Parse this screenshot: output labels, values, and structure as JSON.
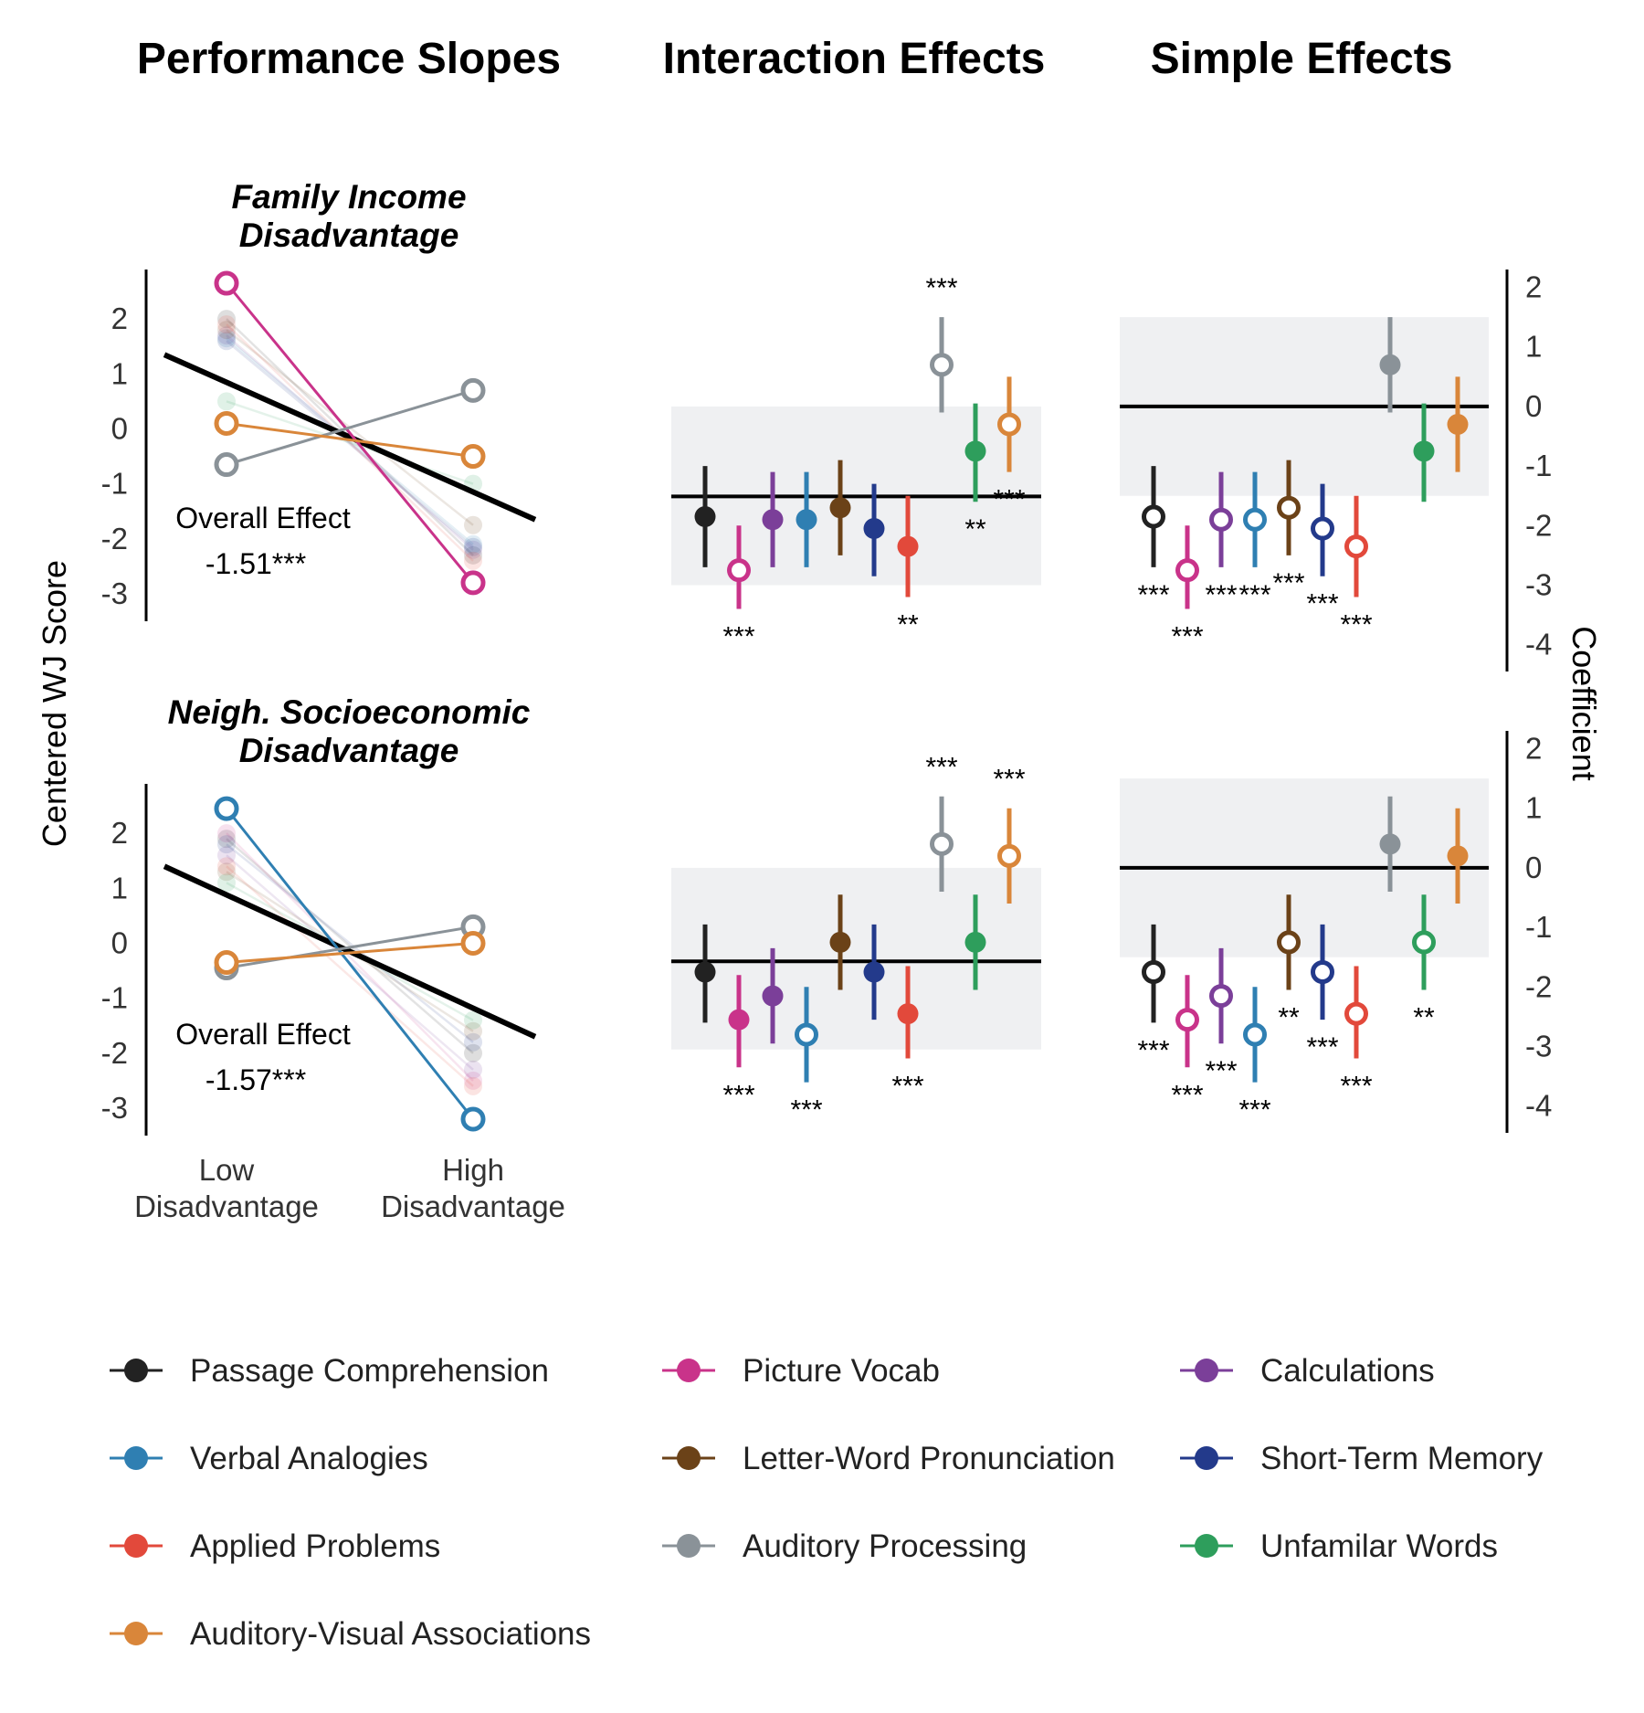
{
  "titles": {
    "performance": "Performance Slopes",
    "interaction": "Interaction Effects",
    "simple": "Simple Effects"
  },
  "colors": {
    "Passage Comprehension": "#222222",
    "Picture Vocab": "#c9338a",
    "Calculations": "#7b3f99",
    "Verbal Analogies": "#2f7fb2",
    "Letter-Word Pronunciation": "#6b4218",
    "Short-Term Memory": "#233a8b",
    "Applied Problems": "#e2493b",
    "Auditory Processing": "#8a9298",
    "Unfamilar Words": "#2e9e5c",
    "Auditory-Visual Associations": "#d9863a"
  },
  "legend": [
    "Passage Comprehension",
    "Picture Vocab",
    "Calculations",
    "Verbal Analogies",
    "Letter-Word Pronunciation",
    "Short-Term Memory",
    "Applied Problems",
    "Auditory Processing",
    "Unfamilar Words",
    "Auditory-Visual Associations"
  ],
  "chart_data": [
    {
      "id": "slopes-income",
      "type": "line",
      "title": "Family Income\nDisadvantage",
      "ylabel": "Centered WJ Score",
      "categories": [
        "Low\nDisadvantage",
        "High\nDisadvantage"
      ],
      "yticks": [
        2,
        1,
        0,
        -1,
        -2,
        -3
      ],
      "ylim": [
        -3.5,
        2.9
      ],
      "overall_effect": {
        "label": "Overall Effect",
        "value": "-1.51***",
        "line": [
          1.35,
          -1.65
        ]
      },
      "series": [
        {
          "name": "Picture Vocab",
          "values": [
            2.65,
            -2.8
          ],
          "highlight": true
        },
        {
          "name": "Auditory Processing",
          "values": [
            -0.65,
            0.7
          ],
          "highlight": true
        },
        {
          "name": "Auditory-Visual Associations",
          "values": [
            0.1,
            -0.5
          ],
          "highlight": true
        },
        {
          "name": "Passage Comprehension",
          "values": [
            2.0,
            -2.3
          ],
          "highlight": false
        },
        {
          "name": "Calculations",
          "values": [
            1.7,
            -2.2
          ],
          "highlight": false
        },
        {
          "name": "Verbal Analogies",
          "values": [
            1.65,
            -2.1
          ],
          "highlight": false
        },
        {
          "name": "Short-Term Memory",
          "values": [
            1.6,
            -2.15
          ],
          "highlight": false
        },
        {
          "name": "Letter-Word Pronunciation",
          "values": [
            1.8,
            -1.75
          ],
          "highlight": false
        },
        {
          "name": "Applied Problems",
          "values": [
            1.9,
            -2.4
          ],
          "highlight": false
        },
        {
          "name": "Unfamilar Words",
          "values": [
            0.5,
            -1.0
          ],
          "highlight": false
        }
      ]
    },
    {
      "id": "slopes-neigh",
      "type": "line",
      "title": "Neigh. Socioeconomic\nDisadvantage",
      "ylabel": "Centered WJ Score",
      "categories": [
        "Low\nDisadvantage",
        "High\nDisadvantage"
      ],
      "yticks": [
        2,
        1,
        0,
        -1,
        -2,
        -3
      ],
      "ylim": [
        -3.5,
        2.9
      ],
      "overall_effect": {
        "label": "Overall Effect",
        "value": "-1.57***",
        "line": [
          1.4,
          -1.7
        ]
      },
      "series": [
        {
          "name": "Verbal Analogies",
          "values": [
            2.45,
            -3.2
          ],
          "highlight": true
        },
        {
          "name": "Auditory Processing",
          "values": [
            -0.45,
            0.3
          ],
          "highlight": true
        },
        {
          "name": "Auditory-Visual Associations",
          "values": [
            -0.35,
            0.0
          ],
          "highlight": true
        },
        {
          "name": "Passage Comprehension",
          "values": [
            1.9,
            -2.0
          ],
          "highlight": false
        },
        {
          "name": "Picture Vocab",
          "values": [
            2.0,
            -2.5
          ],
          "highlight": false
        },
        {
          "name": "Calculations",
          "values": [
            1.6,
            -2.3
          ],
          "highlight": false
        },
        {
          "name": "Short-Term Memory",
          "values": [
            1.8,
            -1.8
          ],
          "highlight": false
        },
        {
          "name": "Letter-Word Pronunciation",
          "values": [
            1.3,
            -1.6
          ],
          "highlight": false
        },
        {
          "name": "Applied Problems",
          "values": [
            1.4,
            -2.6
          ],
          "highlight": false
        },
        {
          "name": "Unfamilar Words",
          "values": [
            1.1,
            -1.4
          ],
          "highlight": false
        }
      ]
    },
    {
      "id": "interaction-income",
      "type": "scatter",
      "ylim": [
        -4.45,
        2.3
      ],
      "refline": -1.51,
      "band": [
        -3.0,
        0.0
      ],
      "points": [
        {
          "name": "Passage Comprehension",
          "value": -1.85,
          "lo": -2.7,
          "hi": -1.0,
          "open": false,
          "stars": ""
        },
        {
          "name": "Picture Vocab",
          "value": -2.75,
          "lo": -3.4,
          "hi": -2.0,
          "open": true,
          "stars": "***"
        },
        {
          "name": "Calculations",
          "value": -1.9,
          "lo": -2.7,
          "hi": -1.1,
          "open": false,
          "stars": ""
        },
        {
          "name": "Verbal Analogies",
          "value": -1.9,
          "lo": -2.7,
          "hi": -1.1,
          "open": false,
          "stars": ""
        },
        {
          "name": "Letter-Word Pronunciation",
          "value": -1.7,
          "lo": -2.5,
          "hi": -0.9,
          "open": false,
          "stars": ""
        },
        {
          "name": "Short-Term Memory",
          "value": -2.05,
          "lo": -2.85,
          "hi": -1.3,
          "open": false,
          "stars": ""
        },
        {
          "name": "Applied Problems",
          "value": -2.35,
          "lo": -3.2,
          "hi": -1.5,
          "open": false,
          "stars": "**"
        },
        {
          "name": "Auditory Processing",
          "value": 0.7,
          "lo": -0.1,
          "hi": 1.5,
          "open": true,
          "stars": "***"
        },
        {
          "name": "Unfamilar Words",
          "value": -0.75,
          "lo": -1.6,
          "hi": 0.05,
          "open": false,
          "stars": "**"
        },
        {
          "name": "Auditory-Visual Associations",
          "value": -0.3,
          "lo": -1.1,
          "hi": 0.5,
          "open": true,
          "stars": "***"
        }
      ]
    },
    {
      "id": "simple-income",
      "type": "scatter",
      "ylim": [
        -4.45,
        2.3
      ],
      "yticks": [
        2,
        1,
        0,
        -1,
        -2,
        -3,
        -4
      ],
      "ylabel": "Coefficient",
      "refline": 0,
      "band": [
        -1.5,
        1.5
      ],
      "points": [
        {
          "name": "Passage Comprehension",
          "value": -1.85,
          "lo": -2.7,
          "hi": -1.0,
          "open": true,
          "stars": "***"
        },
        {
          "name": "Picture Vocab",
          "value": -2.75,
          "lo": -3.4,
          "hi": -2.0,
          "open": true,
          "stars": "***"
        },
        {
          "name": "Calculations",
          "value": -1.9,
          "lo": -2.7,
          "hi": -1.1,
          "open": true,
          "stars": "***"
        },
        {
          "name": "Verbal Analogies",
          "value": -1.9,
          "lo": -2.7,
          "hi": -1.1,
          "open": true,
          "stars": "***"
        },
        {
          "name": "Letter-Word Pronunciation",
          "value": -1.7,
          "lo": -2.5,
          "hi": -0.9,
          "open": true,
          "stars": "***"
        },
        {
          "name": "Short-Term Memory",
          "value": -2.05,
          "lo": -2.85,
          "hi": -1.3,
          "open": true,
          "stars": "***"
        },
        {
          "name": "Applied Problems",
          "value": -2.35,
          "lo": -3.2,
          "hi": -1.5,
          "open": true,
          "stars": "***"
        },
        {
          "name": "Auditory Processing",
          "value": 0.7,
          "lo": -0.1,
          "hi": 1.5,
          "open": false,
          "stars": ""
        },
        {
          "name": "Unfamilar Words",
          "value": -0.75,
          "lo": -1.6,
          "hi": 0.05,
          "open": false,
          "stars": ""
        },
        {
          "name": "Auditory-Visual Associations",
          "value": -0.3,
          "lo": -1.1,
          "hi": 0.5,
          "open": false,
          "stars": ""
        }
      ]
    },
    {
      "id": "interaction-neigh",
      "type": "scatter",
      "ylim": [
        -4.45,
        2.3
      ],
      "refline": -1.57,
      "band": [
        -3.05,
        0.0
      ],
      "points": [
        {
          "name": "Passage Comprehension",
          "value": -1.75,
          "lo": -2.6,
          "hi": -0.95,
          "open": false,
          "stars": ""
        },
        {
          "name": "Picture Vocab",
          "value": -2.55,
          "lo": -3.35,
          "hi": -1.8,
          "open": false,
          "stars": "***"
        },
        {
          "name": "Calculations",
          "value": -2.15,
          "lo": -2.95,
          "hi": -1.35,
          "open": false,
          "stars": ""
        },
        {
          "name": "Verbal Analogies",
          "value": -2.8,
          "lo": -3.6,
          "hi": -2.0,
          "open": true,
          "stars": "***"
        },
        {
          "name": "Letter-Word Pronunciation",
          "value": -1.25,
          "lo": -2.05,
          "hi": -0.45,
          "open": false,
          "stars": ""
        },
        {
          "name": "Short-Term Memory",
          "value": -1.75,
          "lo": -2.55,
          "hi": -0.95,
          "open": false,
          "stars": ""
        },
        {
          "name": "Applied Problems",
          "value": -2.45,
          "lo": -3.2,
          "hi": -1.65,
          "open": false,
          "stars": "***"
        },
        {
          "name": "Auditory Processing",
          "value": 0.4,
          "lo": -0.4,
          "hi": 1.2,
          "open": true,
          "stars": "***"
        },
        {
          "name": "Unfamilar Words",
          "value": -1.25,
          "lo": -2.05,
          "hi": -0.45,
          "open": false,
          "stars": ""
        },
        {
          "name": "Auditory-Visual Associations",
          "value": 0.2,
          "lo": -0.6,
          "hi": 1.0,
          "open": true,
          "stars": "***"
        }
      ]
    },
    {
      "id": "simple-neigh",
      "type": "scatter",
      "ylim": [
        -4.45,
        2.3
      ],
      "yticks": [
        2,
        1,
        0,
        -1,
        -2,
        -3,
        -4
      ],
      "ylabel": "Coefficient",
      "refline": 0,
      "band": [
        -1.5,
        1.5
      ],
      "points": [
        {
          "name": "Passage Comprehension",
          "value": -1.75,
          "lo": -2.6,
          "hi": -0.95,
          "open": true,
          "stars": "***"
        },
        {
          "name": "Picture Vocab",
          "value": -2.55,
          "lo": -3.35,
          "hi": -1.8,
          "open": true,
          "stars": "***"
        },
        {
          "name": "Calculations",
          "value": -2.15,
          "lo": -2.95,
          "hi": -1.35,
          "open": true,
          "stars": "***"
        },
        {
          "name": "Verbal Analogies",
          "value": -2.8,
          "lo": -3.6,
          "hi": -2.0,
          "open": true,
          "stars": "***"
        },
        {
          "name": "Letter-Word Pronunciation",
          "value": -1.25,
          "lo": -2.05,
          "hi": -0.45,
          "open": true,
          "stars": "**"
        },
        {
          "name": "Short-Term Memory",
          "value": -1.75,
          "lo": -2.55,
          "hi": -0.95,
          "open": true,
          "stars": "***"
        },
        {
          "name": "Applied Problems",
          "value": -2.45,
          "lo": -3.2,
          "hi": -1.65,
          "open": true,
          "stars": "***"
        },
        {
          "name": "Auditory Processing",
          "value": 0.4,
          "lo": -0.4,
          "hi": 1.2,
          "open": false,
          "stars": ""
        },
        {
          "name": "Unfamilar Words",
          "value": -1.25,
          "lo": -2.05,
          "hi": -0.45,
          "open": true,
          "stars": "**"
        },
        {
          "name": "Auditory-Visual Associations",
          "value": 0.2,
          "lo": -0.6,
          "hi": 1.0,
          "open": false,
          "stars": ""
        }
      ]
    }
  ]
}
